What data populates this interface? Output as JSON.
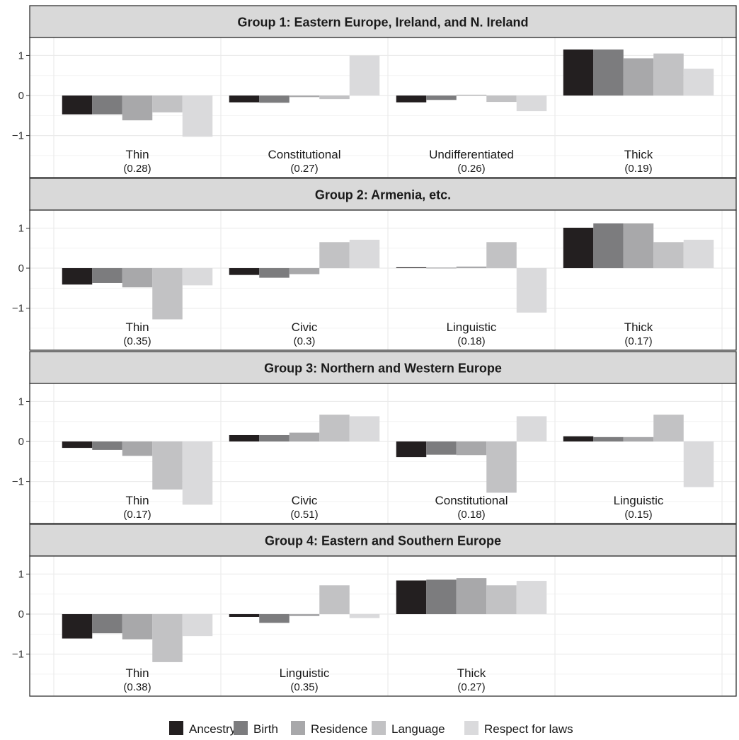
{
  "chart_data": {
    "type": "bar",
    "ylim": [
      -2.05,
      1.45
    ],
    "yticks": [
      -1,
      0,
      1
    ],
    "ytick_labels": [
      "−1",
      "0",
      "1"
    ],
    "grid": true,
    "legend_position": "bottom",
    "series": [
      {
        "name": "Ancestry",
        "color": "#231f20"
      },
      {
        "name": "Birth",
        "color": "#7c7c7e"
      },
      {
        "name": "Residence",
        "color": "#a8a8aa"
      },
      {
        "name": "Language",
        "color": "#c2c2c4"
      },
      {
        "name": "Respect for laws",
        "color": "#dadadc"
      }
    ],
    "panels": [
      {
        "title": "Group 1: Eastern Europe, Ireland, and N. Ireland",
        "classes": [
          {
            "name": "Thin",
            "share": "(0.28)",
            "values": [
              -0.47,
              -0.47,
              -0.62,
              -0.42,
              -1.03
            ]
          },
          {
            "name": "Constitutional",
            "share": "(0.27)",
            "values": [
              -0.17,
              -0.18,
              -0.04,
              -0.09,
              1.0
            ]
          },
          {
            "name": "Undifferentiated",
            "share": "(0.26)",
            "values": [
              -0.17,
              -0.11,
              0.02,
              -0.16,
              -0.39
            ]
          },
          {
            "name": "Thick",
            "share": "(0.19)",
            "values": [
              1.15,
              1.15,
              0.93,
              1.05,
              0.67
            ]
          }
        ]
      },
      {
        "title": "Group 2: Armenia, etc.",
        "classes": [
          {
            "name": "Thin",
            "share": "(0.35)",
            "values": [
              -0.41,
              -0.37,
              -0.48,
              -1.28,
              -0.43
            ]
          },
          {
            "name": "Civic",
            "share": "(0.3)",
            "values": [
              -0.17,
              -0.24,
              -0.15,
              0.65,
              0.71
            ]
          },
          {
            "name": "Linguistic",
            "share": "(0.18)",
            "values": [
              0.02,
              0.01,
              0.04,
              0.65,
              -1.11
            ]
          },
          {
            "name": "Thick",
            "share": "(0.17)",
            "values": [
              1.01,
              1.12,
              1.12,
              0.65,
              0.71
            ]
          }
        ]
      },
      {
        "title": "Group 3: Northern and Western Europe",
        "classes": [
          {
            "name": "Thin",
            "share": "(0.17)",
            "values": [
              -0.16,
              -0.21,
              -0.36,
              -1.2,
              -1.58
            ]
          },
          {
            "name": "Civic",
            "share": "(0.51)",
            "values": [
              0.16,
              0.16,
              0.22,
              0.67,
              0.63
            ]
          },
          {
            "name": "Constitutional",
            "share": "(0.18)",
            "values": [
              -0.39,
              -0.33,
              -0.34,
              -1.28,
              0.63
            ]
          },
          {
            "name": "Linguistic",
            "share": "(0.15)",
            "values": [
              0.13,
              0.11,
              0.11,
              0.67,
              -1.14
            ]
          }
        ]
      },
      {
        "title": "Group 4: Eastern and Southern Europe",
        "classes": [
          {
            "name": "Thin",
            "share": "(0.38)",
            "values": [
              -0.61,
              -0.48,
              -0.63,
              -1.2,
              -0.55
            ]
          },
          {
            "name": "Linguistic",
            "share": "(0.35)",
            "values": [
              -0.07,
              -0.22,
              -0.05,
              0.72,
              -0.1
            ]
          },
          {
            "name": "Thick",
            "share": "(0.27)",
            "values": [
              0.84,
              0.86,
              0.9,
              0.72,
              0.83
            ]
          }
        ]
      }
    ]
  }
}
